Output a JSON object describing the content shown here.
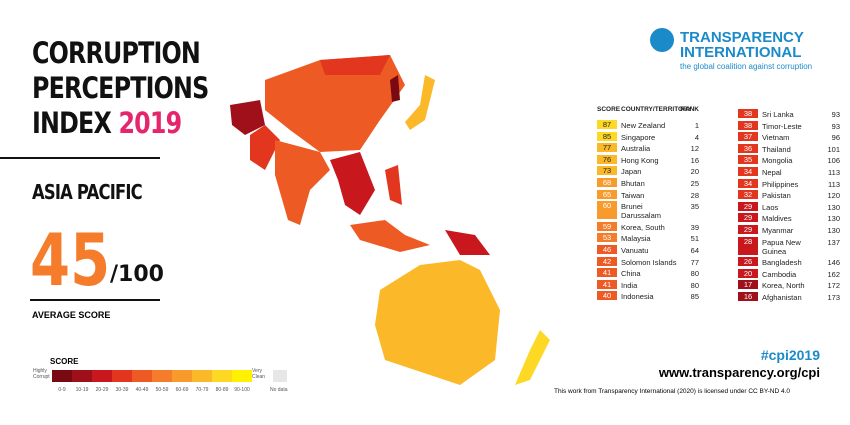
{
  "title": {
    "line1": "CORRUPTION",
    "line2": "PERCEPTIONS",
    "line3": "INDEX",
    "year": "2019"
  },
  "region": "ASIA PACIFIC",
  "average": {
    "score": "45",
    "out_of": "/100",
    "label": "AVERAGE SCORE"
  },
  "logo": {
    "line1": "TRANSPARENCY",
    "line2": "INTERNATIONAL",
    "tagline": "the global coalition against corruption"
  },
  "legend": {
    "title": "SCORE",
    "low": "Highly Corrupt",
    "high": "Very Clean",
    "bins": [
      {
        "label": "0-9",
        "color": "#7a0a11"
      },
      {
        "label": "10-19",
        "color": "#a0101b"
      },
      {
        "label": "20-29",
        "color": "#c8171d"
      },
      {
        "label": "30-39",
        "color": "#e2361f"
      },
      {
        "label": "40-49",
        "color": "#ee5a24"
      },
      {
        "label": "50-59",
        "color": "#f47c2a"
      },
      {
        "label": "60-69",
        "color": "#f89a2c"
      },
      {
        "label": "70-79",
        "color": "#fbb829"
      },
      {
        "label": "80-89",
        "color": "#fdd825"
      },
      {
        "label": "90-100",
        "color": "#fff200"
      }
    ],
    "no_data": {
      "label": "No data",
      "color": "#e6e6e6"
    }
  },
  "table": {
    "headers": [
      "SCORE",
      "COUNTRY/TERRITORY",
      "RANK"
    ],
    "rows": [
      [
        87,
        "New Zealand",
        1
      ],
      [
        85,
        "Singapore",
        4
      ],
      [
        77,
        "Australia",
        12
      ],
      [
        76,
        "Hong Kong",
        16
      ],
      [
        73,
        "Japan",
        20
      ],
      [
        68,
        "Bhutan",
        25
      ],
      [
        65,
        "Taiwan",
        28
      ],
      [
        60,
        "Brunei Darussalam",
        35
      ],
      [
        59,
        "Korea, South",
        39
      ],
      [
        53,
        "Malaysia",
        51
      ],
      [
        46,
        "Vanuatu",
        64
      ],
      [
        42,
        "Solomon Islands",
        77
      ],
      [
        41,
        "China",
        80
      ],
      [
        41,
        "India",
        80
      ],
      [
        40,
        "Indonesia",
        85
      ],
      [
        38,
        "Sri Lanka",
        93
      ],
      [
        38,
        "Timor-Leste",
        93
      ],
      [
        37,
        "Vietnam",
        96
      ],
      [
        36,
        "Thailand",
        101
      ],
      [
        35,
        "Mongolia",
        106
      ],
      [
        34,
        "Nepal",
        113
      ],
      [
        34,
        "Philippines",
        113
      ],
      [
        32,
        "Pakistan",
        120
      ],
      [
        29,
        "Laos",
        130
      ],
      [
        29,
        "Maldives",
        130
      ],
      [
        29,
        "Myanmar",
        130
      ],
      [
        28,
        "Papua New Guinea",
        137
      ],
      [
        26,
        "Bangladesh",
        146
      ],
      [
        20,
        "Cambodia",
        162
      ],
      [
        17,
        "Korea, North",
        172
      ],
      [
        16,
        "Afghanistan",
        173
      ]
    ]
  },
  "footer": {
    "hashtag": "#cpi2019",
    "url": "www.transparency.org/cpi",
    "license": "This work from Transparency International (2020) is licensed under CC BY-ND 4.0"
  }
}
